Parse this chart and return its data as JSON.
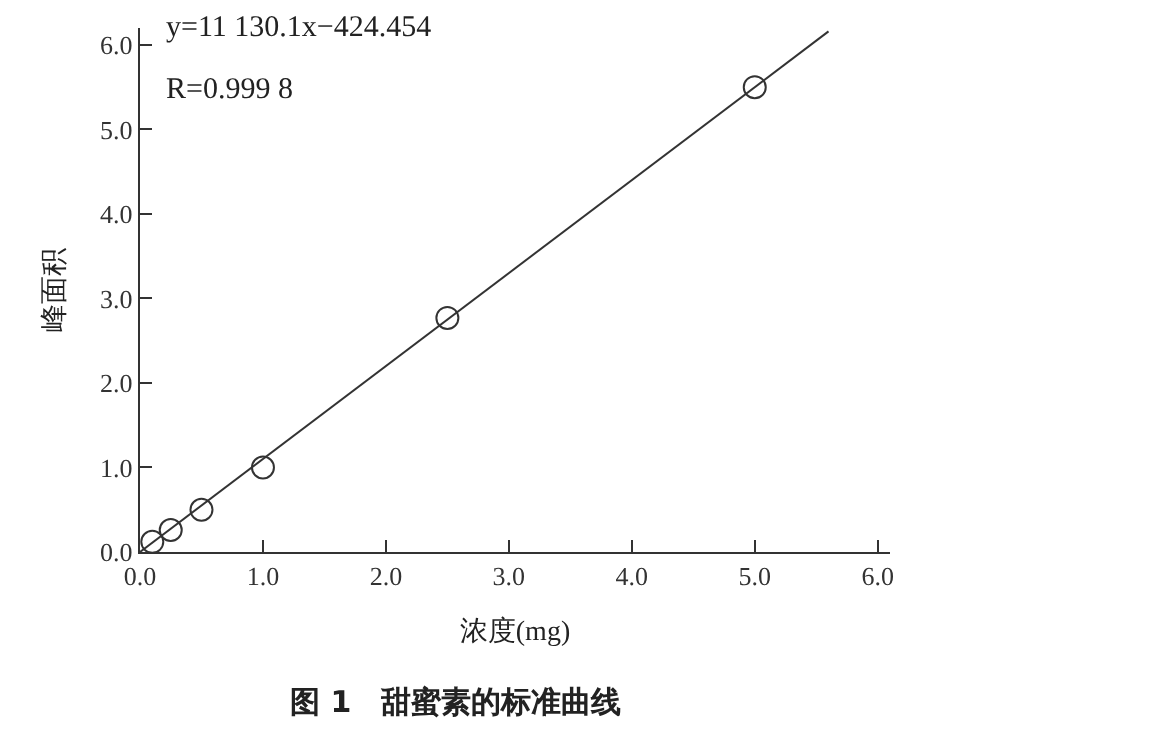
{
  "chart_data": {
    "type": "scatter",
    "xlabel": "浓度(mg)",
    "ylabel": "峰面积",
    "x": [
      0.1,
      0.25,
      0.5,
      1.0,
      2.5,
      5.0
    ],
    "series": [
      {
        "color": "#333333",
        "values": [
          0.12,
          0.26,
          0.5,
          1.0,
          2.77,
          5.5
        ],
        "marker": "circle"
      },
      {
        "type": "line",
        "color": "#333333",
        "x": [
          0.0,
          5.6
        ],
        "values": [
          0.0,
          6.16
        ],
        "marker": "none",
        "line_style": "solid"
      }
    ],
    "xlim": [
      0,
      6.1
    ],
    "ylim": [
      0,
      6.2
    ],
    "xticks": [
      {
        "value": 0,
        "label": "0.0"
      },
      {
        "value": 1,
        "label": "1.0"
      },
      {
        "value": 2,
        "label": "2.0"
      },
      {
        "value": 3,
        "label": "3.0"
      },
      {
        "value": 4,
        "label": "4.0"
      },
      {
        "value": 5,
        "label": "5.0"
      },
      {
        "value": 6,
        "label": "6.0"
      }
    ],
    "yticks": [
      {
        "value": 0,
        "label": "0.0"
      },
      {
        "value": 1,
        "label": "1.0"
      },
      {
        "value": 2,
        "label": "2.0"
      },
      {
        "value": 3,
        "label": "3.0"
      },
      {
        "value": 4,
        "label": "4.0"
      },
      {
        "value": 5,
        "label": "5.0"
      },
      {
        "value": 6,
        "label": "6.0"
      }
    ],
    "annotations": [
      "y=11 130.1x−424.454",
      "R=0.999 8",
      "图 1　甜蜜素的标准曲线"
    ]
  }
}
